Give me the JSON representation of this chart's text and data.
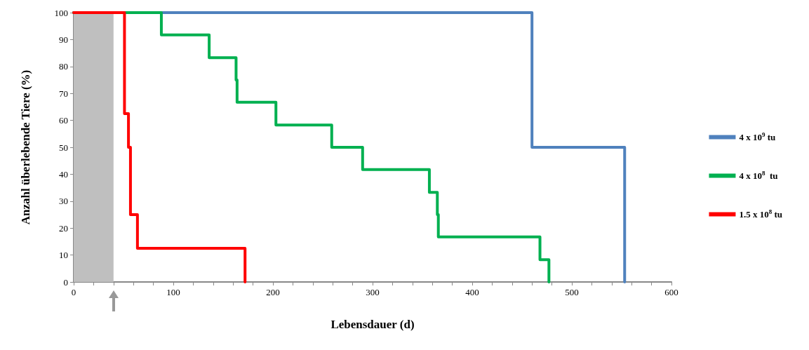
{
  "chart_data": {
    "type": "step",
    "xlabel": "Lebensdauer (d)",
    "ylabel": "Anzahl überlebende Tiere (%)",
    "xlim": [
      0,
      600
    ],
    "xticks": [
      0,
      {
        "value": 20,
        "label": null
      },
      {
        "value": 40,
        "label": null
      },
      {
        "value": 60,
        "label": null
      },
      {
        "value": 80,
        "label": null
      },
      100,
      {
        "value": 120,
        "label": null
      },
      {
        "value": 140,
        "label": null
      },
      {
        "value": 160,
        "label": null
      },
      {
        "value": 180,
        "label": null
      },
      200,
      {
        "value": 220,
        "label": null
      },
      {
        "value": 240,
        "label": null
      },
      {
        "value": 260,
        "label": null
      },
      {
        "value": 280,
        "label": null
      },
      300,
      {
        "value": 320,
        "label": null
      },
      {
        "value": 340,
        "label": null
      },
      {
        "value": 360,
        "label": null
      },
      {
        "value": 380,
        "label": null
      },
      400,
      {
        "value": 420,
        "label": null
      },
      {
        "value": 440,
        "label": null
      },
      {
        "value": 460,
        "label": null
      },
      {
        "value": 480,
        "label": null
      },
      500,
      {
        "value": 520,
        "label": null
      },
      {
        "value": 540,
        "label": null
      },
      {
        "value": 560,
        "label": null
      },
      {
        "value": 580,
        "label": null
      },
      600
    ],
    "ylim": [
      0,
      100
    ],
    "yticks": [
      0,
      10,
      20,
      30,
      40,
      50,
      60,
      70,
      80,
      90,
      100
    ],
    "grid": false,
    "legend": "right",
    "marker": "none",
    "line_style": "solid",
    "bands": [
      {
        "axis": "x",
        "from": 0,
        "to": 40,
        "color": "#bfbfbf"
      }
    ],
    "series": [
      {
        "name": "4 x 10$^{9}$ tu",
        "color": "#4f81bd",
        "x": [
          0,
          460,
          553
        ],
        "values": [
          100,
          50,
          0
        ]
      },
      {
        "name": "4 x 10$^{8}$  tu",
        "color": "#00b050",
        "x": [
          0,
          88,
          136,
          163,
          164,
          203,
          259,
          290,
          357,
          365,
          366,
          468,
          477
        ],
        "values": [
          100,
          91.7,
          83.3,
          75,
          66.7,
          58.3,
          50,
          41.7,
          33.3,
          25,
          16.7,
          8.3,
          0
        ]
      },
      {
        "name": "1.5 x 10$^{8}$ tu",
        "color": "#ff0000",
        "x": [
          0,
          51,
          55,
          57,
          64,
          172
        ],
        "values": [
          100,
          62.5,
          50,
          25,
          12.5,
          0
        ]
      }
    ]
  }
}
